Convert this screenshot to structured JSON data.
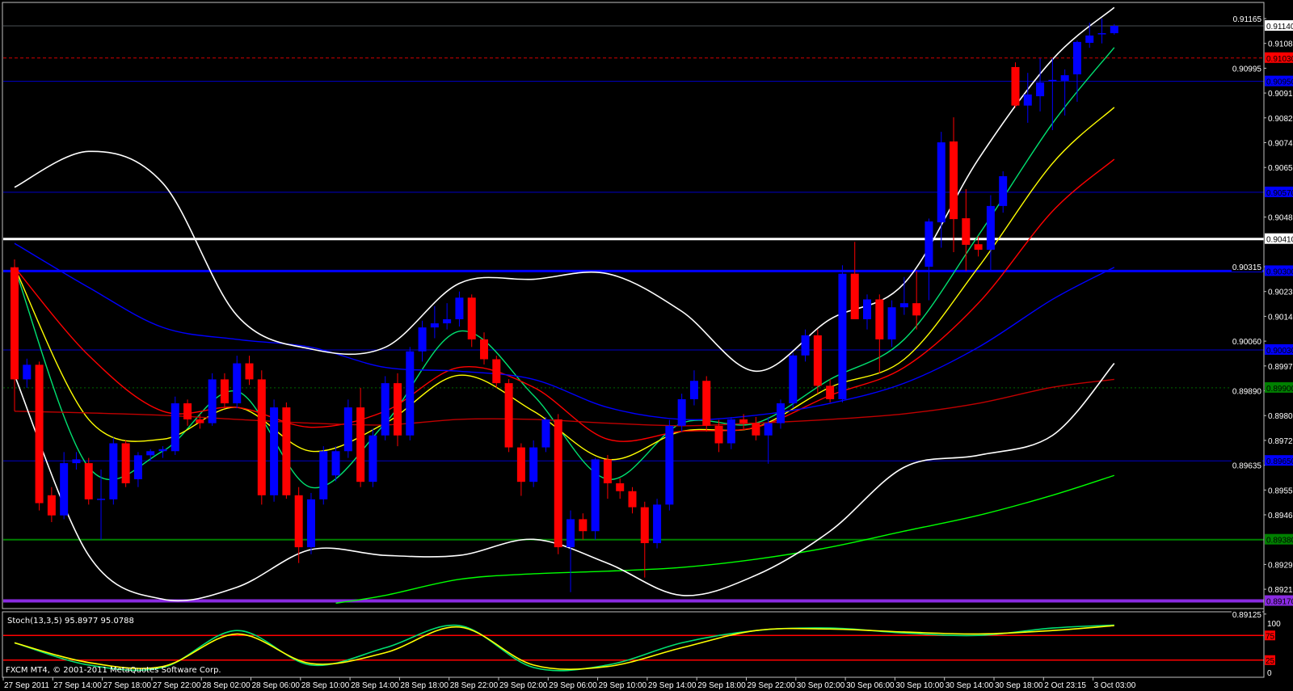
{
  "window": {
    "footer_text": "FXCM MT4, © 2001-2011 MetaQuotes Software Corp."
  },
  "colors": {
    "background": "#000000",
    "bull_candle": "#0000ff",
    "bear_candle": "#ff0000",
    "axis": "#c0c0c0"
  },
  "chart_data": [
    {
      "type": "candlestick",
      "timeframe_bar_hours": 1,
      "ylim": [
        0.89125,
        0.91175
      ],
      "grid": false,
      "price_axis_ticks": [
        "0.91165",
        "0.91080",
        "0.90995",
        "0.90910",
        "0.90825",
        "0.90740",
        "0.90655",
        "0.90485",
        "0.90315",
        "0.90230",
        "0.90145",
        "0.90060",
        "0.89975",
        "0.89890",
        "0.89805",
        "0.89720",
        "0.89635",
        "0.89550",
        "0.89465",
        "0.89295",
        "0.89210",
        "0.89125"
      ],
      "time_axis_labels": [
        "27 Sep 2011",
        "27 Sep 14:00",
        "27 Sep 18:00",
        "27 Sep 22:00",
        "28 Sep 02:00",
        "28 Sep 06:00",
        "28 Sep 10:00",
        "28 Sep 14:00",
        "28 Sep 18:00",
        "28 Sep 22:00",
        "29 Sep 02:00",
        "29 Sep 06:00",
        "29 Sep 10:00",
        "29 Sep 14:00",
        "29 Sep 18:00",
        "29 Sep 22:00",
        "30 Sep 02:00",
        "30 Sep 06:00",
        "30 Sep 10:00",
        "30 Sep 14:00",
        "30 Sep 18:00",
        "2 Oct 23:15",
        "3 Oct 03:00"
      ],
      "horizontal_levels": [
        {
          "price": "0.91140",
          "color": "#4a4f55",
          "style": "solid",
          "label_bg": "#ffffff",
          "label_fg": "#000000"
        },
        {
          "price": "0.91030",
          "color": "#d00000",
          "style": "dashed",
          "label_bg": "#ff0000",
          "label_fg": "#000000"
        },
        {
          "price": "0.90950",
          "color": "#0000c8",
          "style": "solid",
          "label_bg": "#0000ff",
          "label_fg": "#000000"
        },
        {
          "price": "0.90570",
          "color": "#0000c8",
          "style": "solid",
          "label_bg": "#0000ff",
          "label_fg": "#000000"
        },
        {
          "price": "0.90410",
          "color": "#ffffff",
          "style": "thick",
          "label_bg": "#ffffff",
          "label_fg": "#000000"
        },
        {
          "price": "0.90300",
          "color": "#0000ff",
          "style": "thick",
          "label_bg": "#0000ff",
          "label_fg": "#000000"
        },
        {
          "price": "0.90030",
          "color": "#0000c8",
          "style": "solid",
          "label_bg": "#0000ff",
          "label_fg": "#000000"
        },
        {
          "price": "0.89900",
          "color": "#006400",
          "style": "dotted",
          "label_bg": "#008000",
          "label_fg": "#000000"
        },
        {
          "price": "0.89650",
          "color": "#0000c8",
          "style": "solid",
          "label_bg": "#0000ff",
          "label_fg": "#000000"
        },
        {
          "price": "0.89380",
          "color": "#008000",
          "style": "medium",
          "label_bg": "#008000",
          "label_fg": "#000000"
        },
        {
          "price": "0.89170",
          "color": "#8a2be2",
          "style": "heavy",
          "label_bg": "#8a2be2",
          "label_fg": "#000000"
        }
      ],
      "ohlc": [
        [
          0.90313,
          0.9034,
          0.8982,
          0.89929
        ],
        [
          0.89929,
          0.9,
          0.899,
          0.89979
        ],
        [
          0.89979,
          0.8999,
          0.8948,
          0.89505
        ],
        [
          0.89532,
          0.8956,
          0.8944,
          0.89463
        ],
        [
          0.89463,
          0.8968,
          0.8945,
          0.89642
        ],
        [
          0.89642,
          0.8968,
          0.8962,
          0.89655
        ],
        [
          0.89642,
          0.8966,
          0.895,
          0.89518
        ],
        [
          0.89518,
          0.8962,
          0.8938,
          0.8952
        ],
        [
          0.89518,
          0.8973,
          0.895,
          0.8971
        ],
        [
          0.8971,
          0.8972,
          0.8956,
          0.89573
        ],
        [
          0.89587,
          0.8968,
          0.8956,
          0.89669
        ],
        [
          0.89669,
          0.8969,
          0.8965,
          0.89683
        ],
        [
          0.89683,
          0.897,
          0.8966,
          0.8969
        ],
        [
          0.89683,
          0.8987,
          0.8967,
          0.89847
        ],
        [
          0.89847,
          0.8986,
          0.8977,
          0.89792
        ],
        [
          0.89792,
          0.8981,
          0.8976,
          0.89779
        ],
        [
          0.89779,
          0.8995,
          0.8977,
          0.89929
        ],
        [
          0.89929,
          0.8995,
          0.8983,
          0.89847
        ],
        [
          0.89847,
          0.9001,
          0.8983,
          0.89984
        ],
        [
          0.89984,
          0.9001,
          0.8991,
          0.89929
        ],
        [
          0.89929,
          0.8996,
          0.895,
          0.89532
        ],
        [
          0.89532,
          0.8986,
          0.8951,
          0.89833
        ],
        [
          0.89833,
          0.8985,
          0.8952,
          0.89532
        ],
        [
          0.89532,
          0.8956,
          0.893,
          0.89354
        ],
        [
          0.89354,
          0.8954,
          0.8933,
          0.89518
        ],
        [
          0.89518,
          0.897,
          0.895,
          0.89683
        ],
        [
          0.896,
          0.897,
          0.8958,
          0.89683
        ],
        [
          0.89683,
          0.8986,
          0.8966,
          0.89833
        ],
        [
          0.89833,
          0.899,
          0.8956,
          0.89578
        ],
        [
          0.89578,
          0.8976,
          0.8956,
          0.89737
        ],
        [
          0.89737,
          0.8994,
          0.8972,
          0.89916
        ],
        [
          0.89916,
          0.8995,
          0.897,
          0.89737
        ],
        [
          0.89737,
          0.9004,
          0.8972,
          0.90025
        ],
        [
          0.90025,
          0.9013,
          0.8999,
          0.90107
        ],
        [
          0.90107,
          0.9018,
          0.9007,
          0.90121
        ],
        [
          0.90121,
          0.9019,
          0.901,
          0.90135
        ],
        [
          0.90135,
          0.9023,
          0.9011,
          0.90209
        ],
        [
          0.90209,
          0.9022,
          0.9004,
          0.90066
        ],
        [
          0.90066,
          0.9009,
          0.8998,
          0.89998
        ],
        [
          0.89998,
          0.9001,
          0.899,
          0.89916
        ],
        [
          0.89916,
          0.8993,
          0.8968,
          0.89696
        ],
        [
          0.89696,
          0.8971,
          0.8953,
          0.89578
        ],
        [
          0.89578,
          0.8972,
          0.8956,
          0.89696
        ],
        [
          0.89696,
          0.898,
          0.8968,
          0.89792
        ],
        [
          0.89792,
          0.8981,
          0.8933,
          0.89354
        ],
        [
          0.89354,
          0.8948,
          0.892,
          0.8945
        ],
        [
          0.8945,
          0.8947,
          0.8938,
          0.89409
        ],
        [
          0.89409,
          0.8966,
          0.8938,
          0.89655
        ],
        [
          0.89655,
          0.8967,
          0.8952,
          0.89573
        ],
        [
          0.89573,
          0.8959,
          0.8952,
          0.89546
        ],
        [
          0.89546,
          0.8956,
          0.8947,
          0.89491
        ],
        [
          0.89491,
          0.8951,
          0.8925,
          0.89368
        ],
        [
          0.89368,
          0.8952,
          0.8935,
          0.895
        ],
        [
          0.895,
          0.8979,
          0.8948,
          0.8977
        ],
        [
          0.8977,
          0.8988,
          0.8975,
          0.89861
        ],
        [
          0.89861,
          0.8996,
          0.8984,
          0.89924
        ],
        [
          0.89924,
          0.8994,
          0.8975,
          0.8977
        ],
        [
          0.8977,
          0.8979,
          0.8968,
          0.8971
        ],
        [
          0.8971,
          0.898,
          0.8969,
          0.89792
        ],
        [
          0.89792,
          0.8981,
          0.8976,
          0.89779
        ],
        [
          0.89779,
          0.898,
          0.8972,
          0.89737
        ],
        [
          0.89737,
          0.898,
          0.8964,
          0.89779
        ],
        [
          0.89779,
          0.8986,
          0.8976,
          0.89847
        ],
        [
          0.89847,
          0.9002,
          0.8983,
          0.90011
        ],
        [
          0.90011,
          0.901,
          0.8999,
          0.9008
        ],
        [
          0.9008,
          0.901,
          0.8988,
          0.89907
        ],
        [
          0.89907,
          0.8993,
          0.8985,
          0.89861
        ],
        [
          0.89861,
          0.9032,
          0.8985,
          0.90291
        ],
        [
          0.90291,
          0.904,
          0.9014,
          0.90135
        ],
        [
          0.90135,
          0.9022,
          0.901,
          0.90203
        ],
        [
          0.90203,
          0.9022,
          0.8995,
          0.90066
        ],
        [
          0.90066,
          0.902,
          0.9004,
          0.90176
        ],
        [
          0.90176,
          0.9028,
          0.9015,
          0.9019
        ],
        [
          0.9019,
          0.903,
          0.901,
          0.90148
        ],
        [
          0.90315,
          0.9048,
          0.902,
          0.9047
        ],
        [
          0.90467,
          0.90777,
          0.9038,
          0.90741
        ],
        [
          0.90744,
          0.90827,
          0.90365,
          0.90478
        ],
        [
          0.90481,
          0.90581,
          0.903,
          0.9039
        ],
        [
          0.90392,
          0.9042,
          0.9035,
          0.90373
        ],
        [
          0.90373,
          0.9056,
          0.903,
          0.90523
        ],
        [
          0.90523,
          0.90642,
          0.905,
          0.90625
        ],
        [
          0.90999,
          0.91015,
          0.9086,
          0.90867
        ],
        [
          0.90867,
          0.90979,
          0.90808,
          0.90905
        ],
        [
          0.90899,
          0.91029,
          0.90847,
          0.90946
        ],
        [
          0.90952,
          0.91029,
          0.90783,
          0.90955
        ],
        [
          0.90952,
          0.90991,
          0.90833,
          0.90971
        ],
        [
          0.90974,
          0.9109,
          0.9088,
          0.91085
        ],
        [
          0.91082,
          0.91151,
          0.91065,
          0.91107
        ],
        [
          0.91112,
          0.91165,
          0.9108,
          0.91115
        ],
        [
          0.91115,
          0.91146,
          0.9111,
          0.9114
        ]
      ],
      "overlays": [
        {
          "color": "#00e070",
          "bars": [
            0,
            6,
            12,
            18,
            24,
            30,
            36,
            42,
            48,
            54,
            60,
            66,
            72,
            78,
            84,
            89
          ],
          "values": [
            0.90313,
            0.89628,
            0.89683,
            0.89888,
            0.89559,
            0.89779,
            0.90094,
            0.89874,
            0.89587,
            0.89779,
            0.89779,
            0.89929,
            0.90066,
            0.90422,
            0.90806,
            0.91066
          ]
        },
        {
          "color": "#ffff00",
          "bars": [
            0,
            6,
            12,
            18,
            24,
            30,
            36,
            42,
            48,
            54,
            60,
            66,
            72,
            78,
            84,
            89
          ],
          "values": [
            0.90313,
            0.89792,
            0.89724,
            0.89833,
            0.89683,
            0.89779,
            0.89943,
            0.8982,
            0.89655,
            0.89751,
            0.89765,
            0.89902,
            0.89998,
            0.90313,
            0.90669,
            0.90861
          ]
        },
        {
          "color": "#ff0000",
          "bars": [
            0,
            6,
            12,
            18,
            24,
            30,
            36,
            42,
            48,
            54,
            60,
            66,
            72,
            78,
            84,
            89
          ],
          "values": [
            0.90313,
            0.90011,
            0.8982,
            0.89833,
            0.89765,
            0.8982,
            0.8997,
            0.89902,
            0.89724,
            0.89751,
            0.89765,
            0.89874,
            0.8997,
            0.9019,
            0.90505,
            0.90683
          ]
        },
        {
          "color": "#0000ff",
          "bars": [
            0,
            6,
            12,
            18,
            24,
            30,
            36,
            42,
            48,
            54,
            60,
            66,
            72,
            78,
            84,
            89
          ],
          "values": [
            0.90395,
            0.90244,
            0.90107,
            0.90066,
            0.90039,
            0.8997,
            0.89957,
            0.89929,
            0.89833,
            0.89792,
            0.89806,
            0.89847,
            0.89916,
            0.90039,
            0.90203,
            0.90313
          ]
        },
        {
          "color": "#c00000",
          "bars": [
            0,
            6,
            12,
            18,
            24,
            30,
            36,
            42,
            48,
            54,
            60,
            66,
            72,
            78,
            84,
            89
          ],
          "values": [
            0.8982,
            0.89814,
            0.89806,
            0.89792,
            0.89779,
            0.89773,
            0.89792,
            0.89792,
            0.89779,
            0.8977,
            0.89779,
            0.89792,
            0.89811,
            0.89847,
            0.89902,
            0.89929
          ]
        },
        {
          "color": "#00ff00",
          "bars": [
            26,
            30,
            36,
            42,
            48,
            54,
            60,
            66,
            72,
            78,
            84,
            89
          ],
          "values": [
            0.89162,
            0.89189,
            0.89244,
            0.89263,
            0.89272,
            0.89285,
            0.89313,
            0.89354,
            0.89409,
            0.89463,
            0.89532,
            0.896
          ]
        },
        {
          "color": "#ffffff",
          "bars": [
            0,
            6,
            12,
            18,
            24,
            30,
            36,
            42,
            48,
            54,
            60,
            66,
            72,
            78,
            84,
            89
          ],
          "values": [
            0.90587,
            0.9071,
            0.90601,
            0.90148,
            0.90033,
            0.90039,
            0.90258,
            0.90272,
            0.90291,
            0.90162,
            0.89957,
            0.90135,
            0.90258,
            0.90683,
            0.91025,
            0.91203
          ]
        },
        {
          "color": "#ffffff",
          "bars": [
            0,
            6,
            12,
            18,
            24,
            30,
            36,
            42,
            48,
            54,
            60,
            66,
            72,
            78,
            84,
            89
          ],
          "values": [
            0.89943,
            0.89326,
            0.89176,
            0.89217,
            0.89346,
            0.89326,
            0.89326,
            0.89381,
            0.89299,
            0.89189,
            0.89258,
            0.89409,
            0.89628,
            0.89669,
            0.89737,
            0.89984
          ]
        }
      ]
    },
    {
      "type": "line",
      "title": "Stoch(13,3,5) 95.8977 95.0788",
      "ylim": [
        0,
        100
      ],
      "axis_ticks": [
        "100",
        "0"
      ],
      "levels": [
        "75",
        "25"
      ],
      "level_color": "#ff0000",
      "series": [
        {
          "color": "#00e070",
          "bars": [
            0,
            6,
            12,
            18,
            24,
            30,
            36,
            42,
            48,
            54,
            60,
            66,
            72,
            78,
            84,
            89
          ],
          "values": [
            60,
            15,
            10,
            85,
            15,
            50,
            95,
            10,
            15,
            60,
            85,
            90,
            80,
            75,
            90,
            96
          ]
        },
        {
          "color": "#ffff00",
          "bars": [
            0,
            6,
            12,
            18,
            24,
            30,
            36,
            42,
            48,
            54,
            60,
            66,
            72,
            78,
            84,
            89
          ],
          "values": [
            60,
            20,
            12,
            78,
            18,
            40,
            92,
            15,
            12,
            50,
            85,
            88,
            82,
            78,
            85,
            95
          ]
        }
      ]
    }
  ]
}
